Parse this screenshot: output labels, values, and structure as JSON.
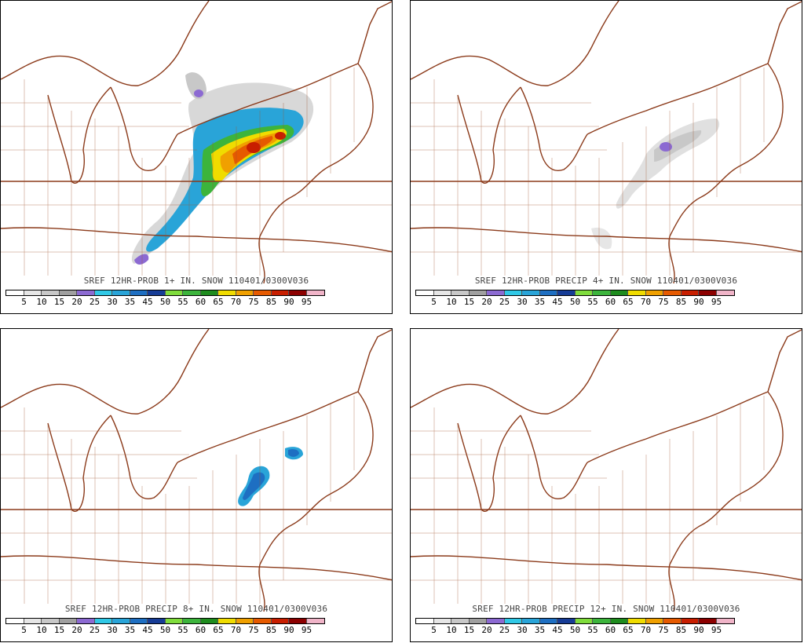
{
  "panels": [
    {
      "id": "p1",
      "title": "SREF 12HR-PROB 1+ IN. SNOW 110401/0300V036"
    },
    {
      "id": "p2",
      "title": "SREF 12HR-PROB PRECIP 4+ IN. SNOW 110401/0300V036"
    },
    {
      "id": "p3",
      "title": "SREF 12HR-PROB PRECIP 8+ IN. SNOW 110401/0300V036"
    },
    {
      "id": "p4",
      "title": "SREF 12HR-PROB PRECIP 12+ IN. SNOW 110401/0300V036"
    }
  ],
  "colorbar": {
    "labels": [
      "5",
      "10",
      "15",
      "20",
      "25",
      "30",
      "35",
      "45",
      "50",
      "55",
      "60",
      "65",
      "70",
      "75",
      "85",
      "90",
      "95"
    ],
    "colors": [
      "#ffffff",
      "#e6e6e6",
      "#c8c8c8",
      "#a0a0a0",
      "#8c6ad2",
      "#30c8e6",
      "#29a4d8",
      "#1e6fc2",
      "#163c96",
      "#7fdc3c",
      "#3cb43c",
      "#1e8c1e",
      "#f0dc00",
      "#f0a000",
      "#e65a00",
      "#c81e00",
      "#8c0000",
      "#f0b4c8"
    ]
  }
}
